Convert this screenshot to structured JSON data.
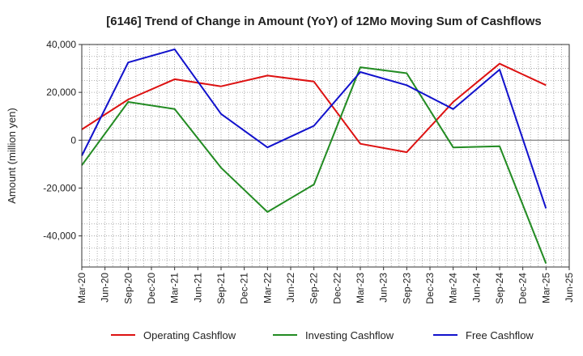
{
  "chart_data": {
    "type": "line",
    "title": "[6146]  Trend of Change in Amount (YoY) of 12Mo Moving Sum of Cashflows",
    "xlabel": "",
    "ylabel": "Amount (million yen)",
    "ylim": [
      -53000,
      40000
    ],
    "yticks": [
      40000,
      20000,
      0,
      -20000,
      -40000
    ],
    "ytick_labels": [
      "40,000",
      "20,000",
      "0",
      "-20,000",
      "-40,000"
    ],
    "categories": [
      "Mar-20",
      "Jun-20",
      "Sep-20",
      "Dec-20",
      "Mar-21",
      "Jun-21",
      "Sep-21",
      "Dec-21",
      "Mar-22",
      "Jun-22",
      "Sep-22",
      "Dec-22",
      "Mar-23",
      "Jun-23",
      "Sep-23",
      "Dec-23",
      "Mar-24",
      "Jun-24",
      "Sep-24",
      "Dec-24",
      "Mar-25",
      "Jun-25"
    ],
    "legend_position": "bottom",
    "grid": true,
    "series": [
      {
        "name": "Operating Cashflow",
        "color": "#dd1111",
        "x": [
          "Mar-20",
          "Sep-20",
          "Mar-21",
          "Sep-21",
          "Mar-22",
          "Sep-22",
          "Mar-23",
          "Sep-23",
          "Mar-24",
          "Sep-24",
          "Mar-25"
        ],
        "values": [
          4500,
          17000,
          25500,
          22500,
          27000,
          24500,
          -1500,
          -5000,
          16000,
          32000,
          23000
        ]
      },
      {
        "name": "Investing Cashflow",
        "color": "#228b22",
        "x": [
          "Mar-20",
          "Sep-20",
          "Mar-21",
          "Sep-21",
          "Mar-22",
          "Sep-22",
          "Mar-23",
          "Sep-23",
          "Mar-24",
          "Sep-24",
          "Mar-25"
        ],
        "values": [
          -10500,
          16000,
          13000,
          -11500,
          -30000,
          -18500,
          30500,
          28000,
          -3000,
          -2500,
          -51500
        ]
      },
      {
        "name": "Free Cashflow",
        "color": "#1111cc",
        "x": [
          "Mar-20",
          "Sep-20",
          "Mar-21",
          "Sep-21",
          "Mar-22",
          "Sep-22",
          "Mar-23",
          "Sep-23",
          "Mar-24",
          "Sep-24",
          "Mar-25"
        ],
        "values": [
          -6500,
          32500,
          38000,
          11000,
          -3000,
          6000,
          28500,
          23000,
          13000,
          29500,
          -28500
        ]
      }
    ]
  }
}
